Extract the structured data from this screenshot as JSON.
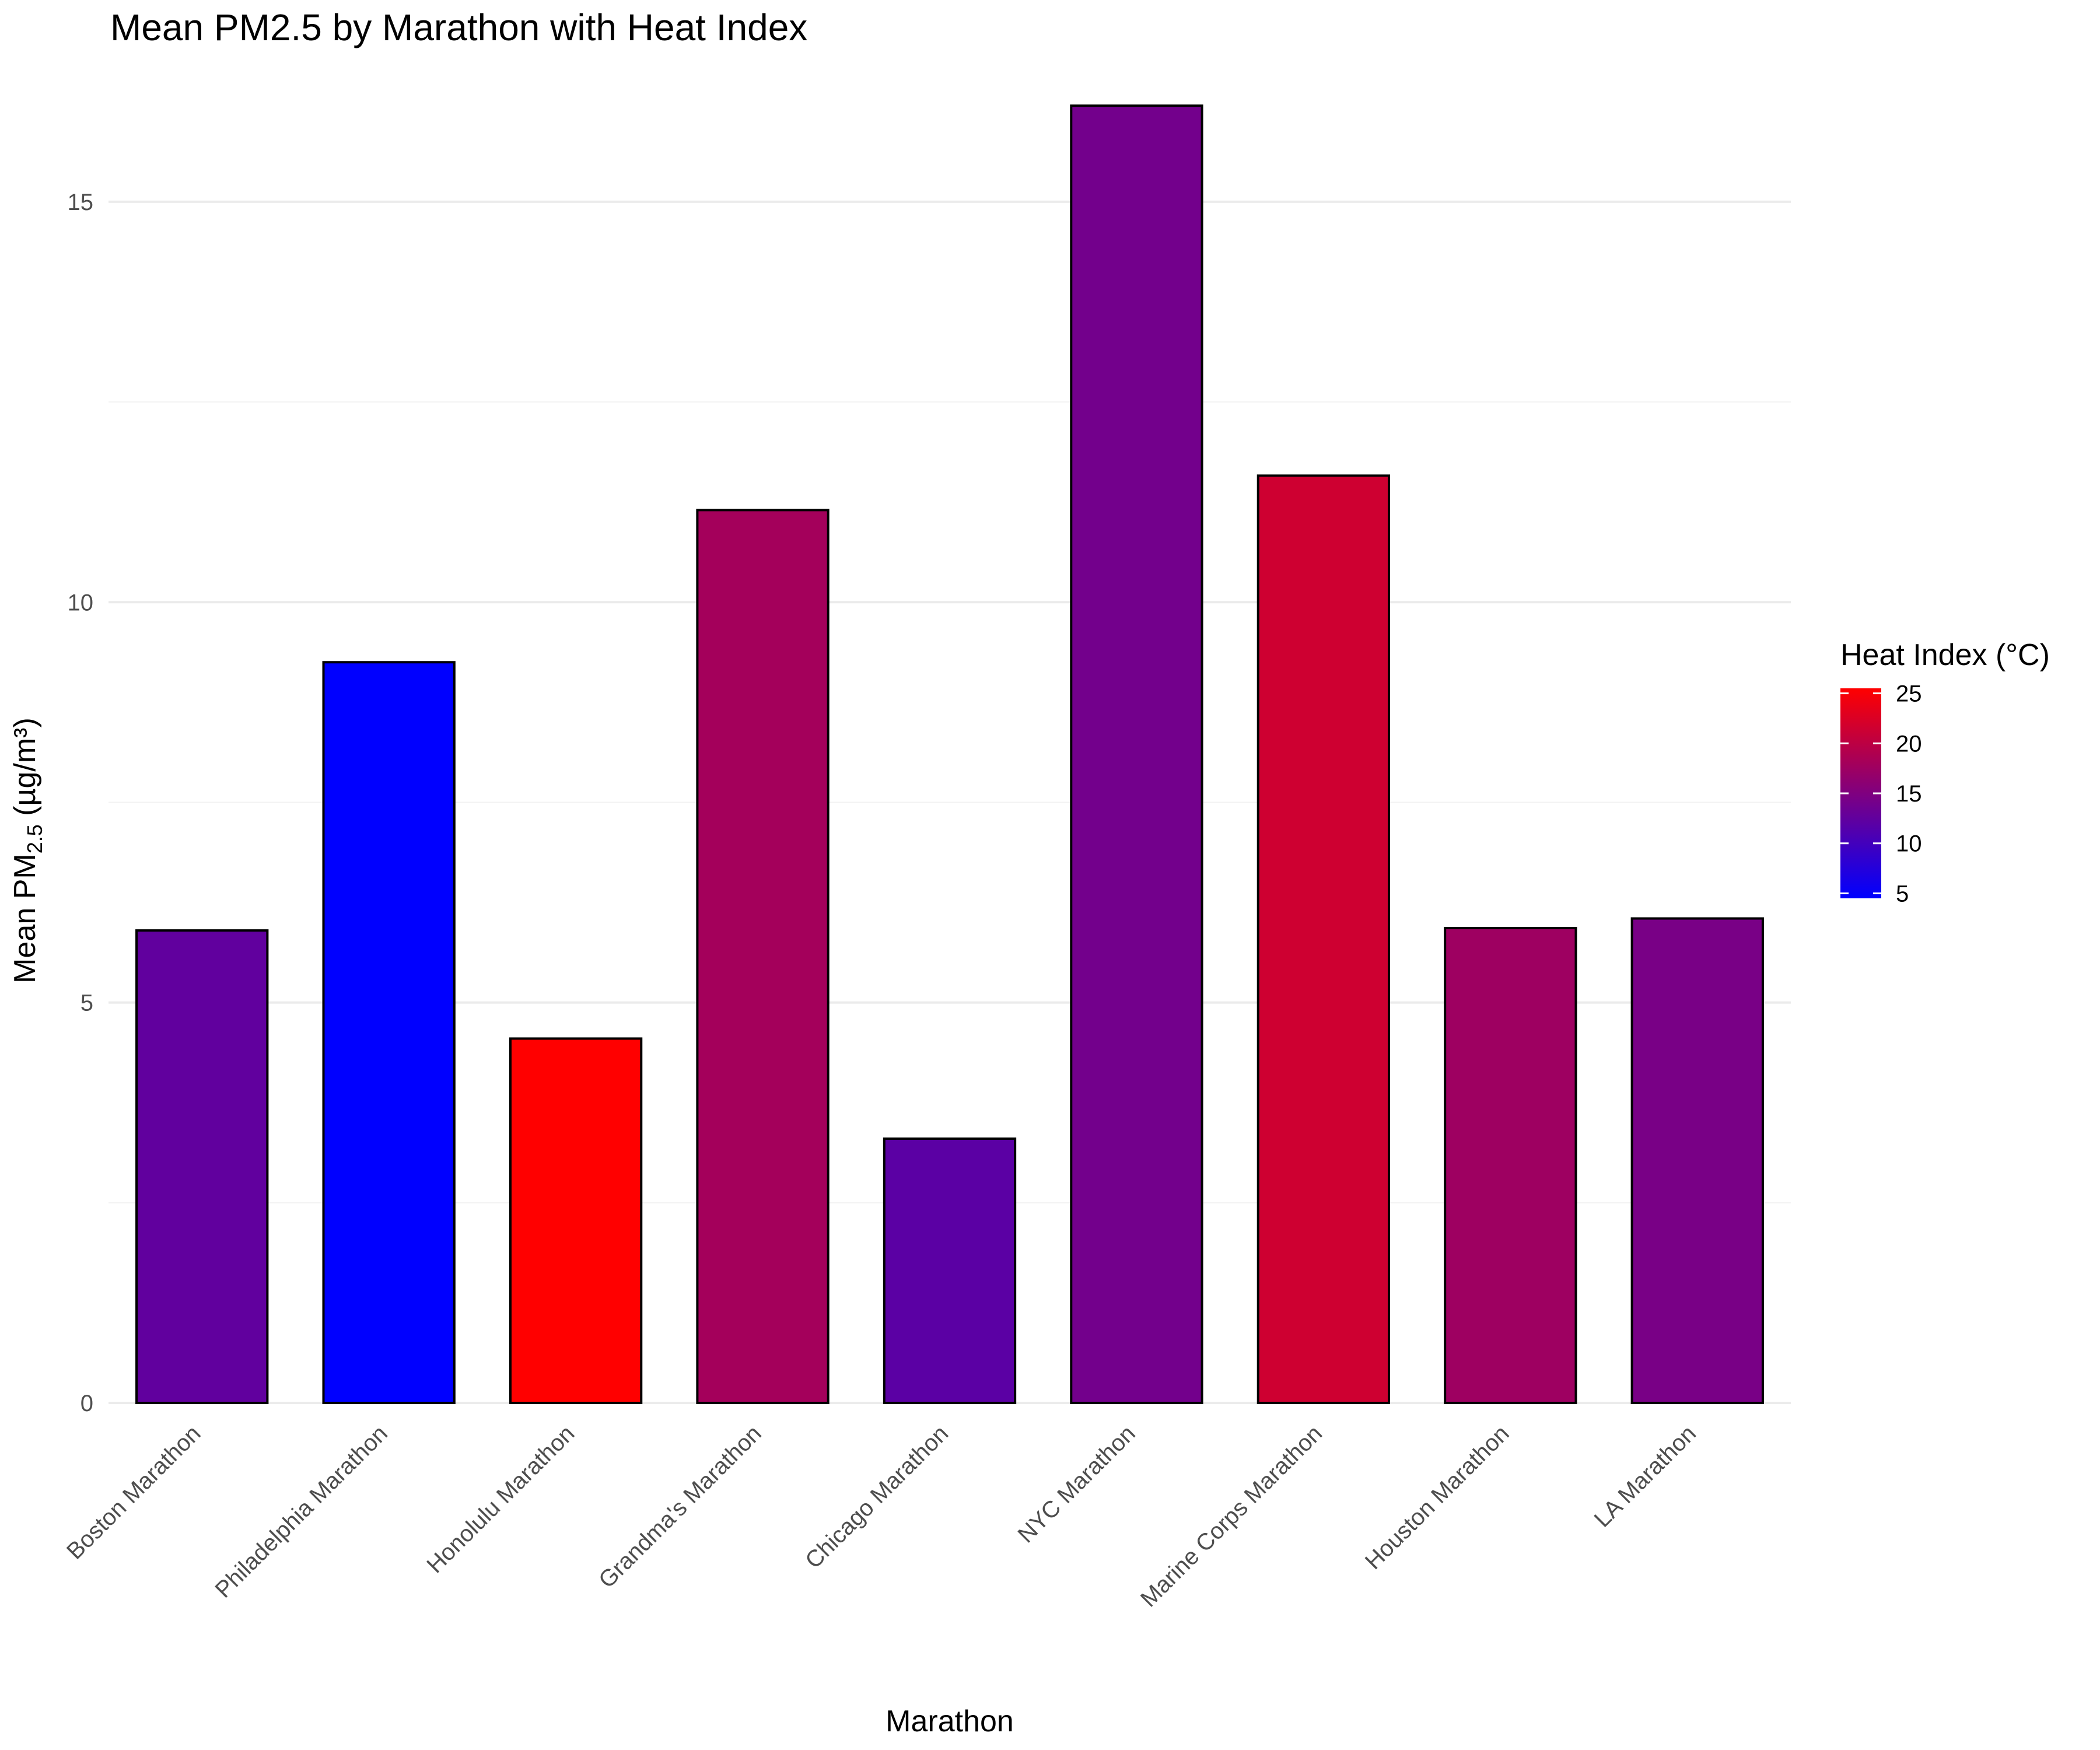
{
  "chart_data": {
    "type": "bar",
    "title": "Mean PM2.5 by Marathon with Heat Index",
    "xlabel": "Marathon",
    "ylabel": {
      "prefix": "Mean PM",
      "subscript": "2.5",
      "suffix": " (µg/m³)"
    },
    "ylim": [
      0,
      16.5
    ],
    "yticks": [
      0,
      5,
      10,
      15
    ],
    "grid": true,
    "categories": [
      "Boston Marathon",
      "Philadelphia Marathon",
      "Honolulu Marathon",
      "Grandma's Marathon",
      "Chicago Marathon",
      "NYC Marathon",
      "Marine Corps Marathon",
      "Houston Marathon",
      "LA Marathon"
    ],
    "values": [
      5.9,
      9.25,
      4.55,
      11.15,
      3.3,
      16.2,
      11.58,
      5.93,
      6.05
    ],
    "heat_index": [
      12.5,
      4.5,
      25.5,
      18.0,
      12.0,
      14.0,
      21.5,
      17.5,
      14.5
    ],
    "legend": {
      "title": "Heat Index (°C)",
      "position": "right",
      "range": [
        4.5,
        25.5
      ],
      "ticks": [
        5,
        10,
        15,
        20,
        25
      ],
      "low_color": "#0000ff",
      "high_color": "#ff0000"
    }
  }
}
